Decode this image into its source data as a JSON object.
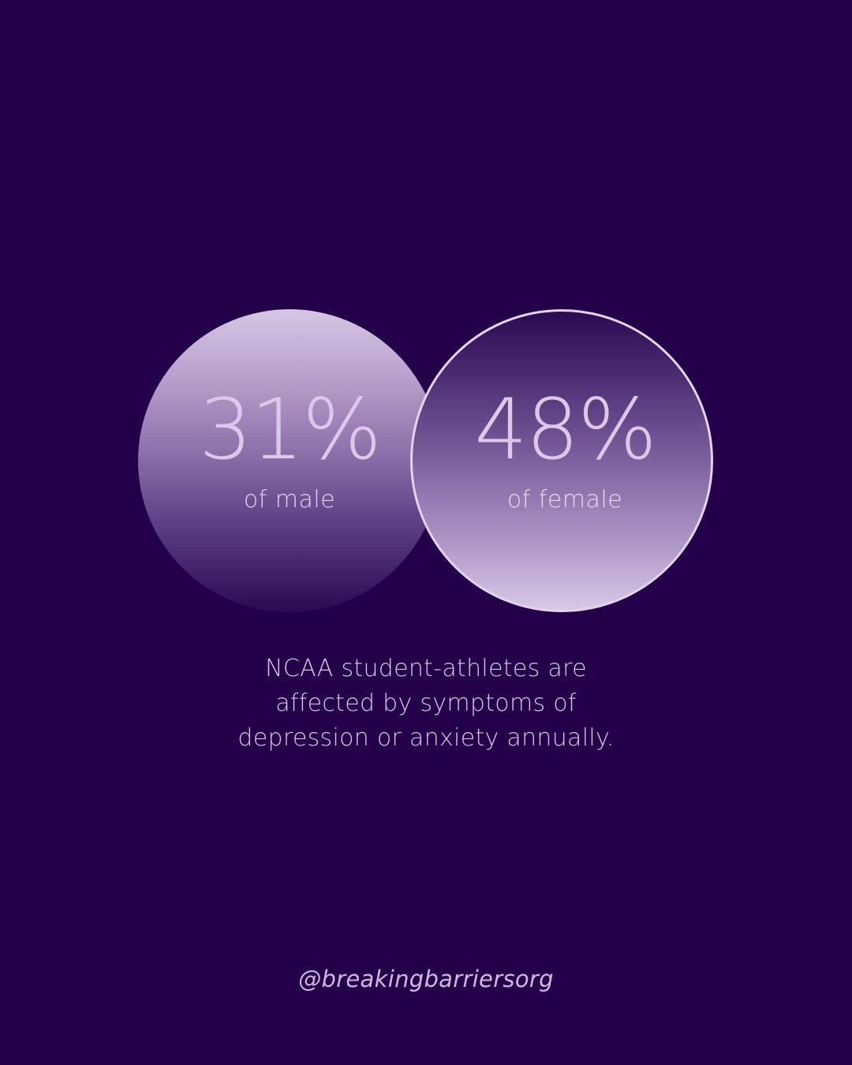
{
  "background_color": "#25004a",
  "stats": [
    {
      "value": "31%",
      "label": "of male"
    },
    {
      "value": "48%",
      "label": "of female"
    }
  ],
  "caption_lines": [
    "NCAA student-athletes are",
    "affected by symptoms of",
    "depression or anxiety annually."
  ],
  "handle": "@breakingbarriersorg",
  "colors": {
    "accent_light": "#dcc9ea",
    "deep_purple": "#25004a"
  }
}
